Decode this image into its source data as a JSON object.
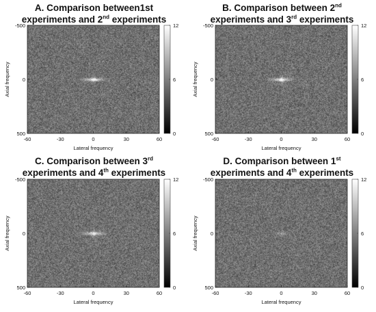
{
  "chart_data": [
    {
      "type": "heatmap",
      "panel": "A",
      "title_parts": [
        {
          "t": "A. Comparison between1st"
        },
        {
          "br": true
        },
        {
          "t": "experiments and 2"
        },
        {
          "sup": "nd"
        },
        {
          "t": " experiments"
        }
      ],
      "xlabel": "Lateral frequency",
      "ylabel": "Axial frequency",
      "xticks": [
        "-60",
        "-30",
        "0",
        "30",
        "60"
      ],
      "yticks": [
        "-500",
        "0",
        "500"
      ],
      "xlim": [
        -60,
        60
      ],
      "ylim": [
        -500,
        500
      ],
      "colorbar": {
        "min": 0,
        "max": 12,
        "ticks": [
          "12",
          "6",
          "0"
        ]
      },
      "peak": {
        "x": 0,
        "y": 0,
        "strength": 0.9
      }
    },
    {
      "type": "heatmap",
      "panel": "B",
      "title_parts": [
        {
          "t": "B. Comparison between 2"
        },
        {
          "sup": "nd"
        },
        {
          "br": true
        },
        {
          "t": "experiments and 3"
        },
        {
          "sup": "rd"
        },
        {
          "t": " experiments"
        }
      ],
      "xlabel": "Lateral frequency",
      "ylabel": "Axial frequency",
      "xticks": [
        "-60",
        "-30",
        "0",
        "30",
        "60"
      ],
      "yticks": [
        "-500",
        "0",
        "500"
      ],
      "xlim": [
        -60,
        60
      ],
      "ylim": [
        -500,
        500
      ],
      "colorbar": {
        "min": 0,
        "max": 12,
        "ticks": [
          "12",
          "6",
          "0"
        ]
      },
      "peak": {
        "x": 0,
        "y": 0,
        "strength": 0.9
      }
    },
    {
      "type": "heatmap",
      "panel": "C",
      "title_parts": [
        {
          "t": "C. Comparison between 3"
        },
        {
          "sup": "rd"
        },
        {
          "br": true
        },
        {
          "t": "experiments and 4"
        },
        {
          "sup": "th"
        },
        {
          "t": " experiments"
        }
      ],
      "xlabel": "Lateral frequency",
      "ylabel": "Axial frequency",
      "xticks": [
        "-60",
        "-30",
        "0",
        "30",
        "60"
      ],
      "yticks": [
        "-500",
        "0",
        "500"
      ],
      "xlim": [
        -60,
        60
      ],
      "ylim": [
        -500,
        500
      ],
      "colorbar": {
        "min": 0,
        "max": 12,
        "ticks": [
          "12",
          "6",
          "0"
        ]
      },
      "peak": {
        "x": 0,
        "y": 0,
        "strength": 0.85
      }
    },
    {
      "type": "heatmap",
      "panel": "D",
      "title_parts": [
        {
          "t": "D. Comparison between 1"
        },
        {
          "sup": "st"
        },
        {
          "br": true
        },
        {
          "t": "experiments and 4"
        },
        {
          "sup": "th"
        },
        {
          "t": " experiments"
        }
      ],
      "xlabel": "Lateral frequency",
      "ylabel": "Axial frequency",
      "xticks": [
        "-60",
        "-30",
        "0",
        "30",
        "60"
      ],
      "yticks": [
        "-500",
        "0",
        "500"
      ],
      "xlim": [
        -60,
        60
      ],
      "ylim": [
        -500,
        500
      ],
      "colorbar": {
        "min": 0,
        "max": 12,
        "ticks": [
          "12",
          "6",
          "0"
        ]
      },
      "peak": {
        "x": 0,
        "y": 0,
        "strength": 0.25
      }
    }
  ]
}
